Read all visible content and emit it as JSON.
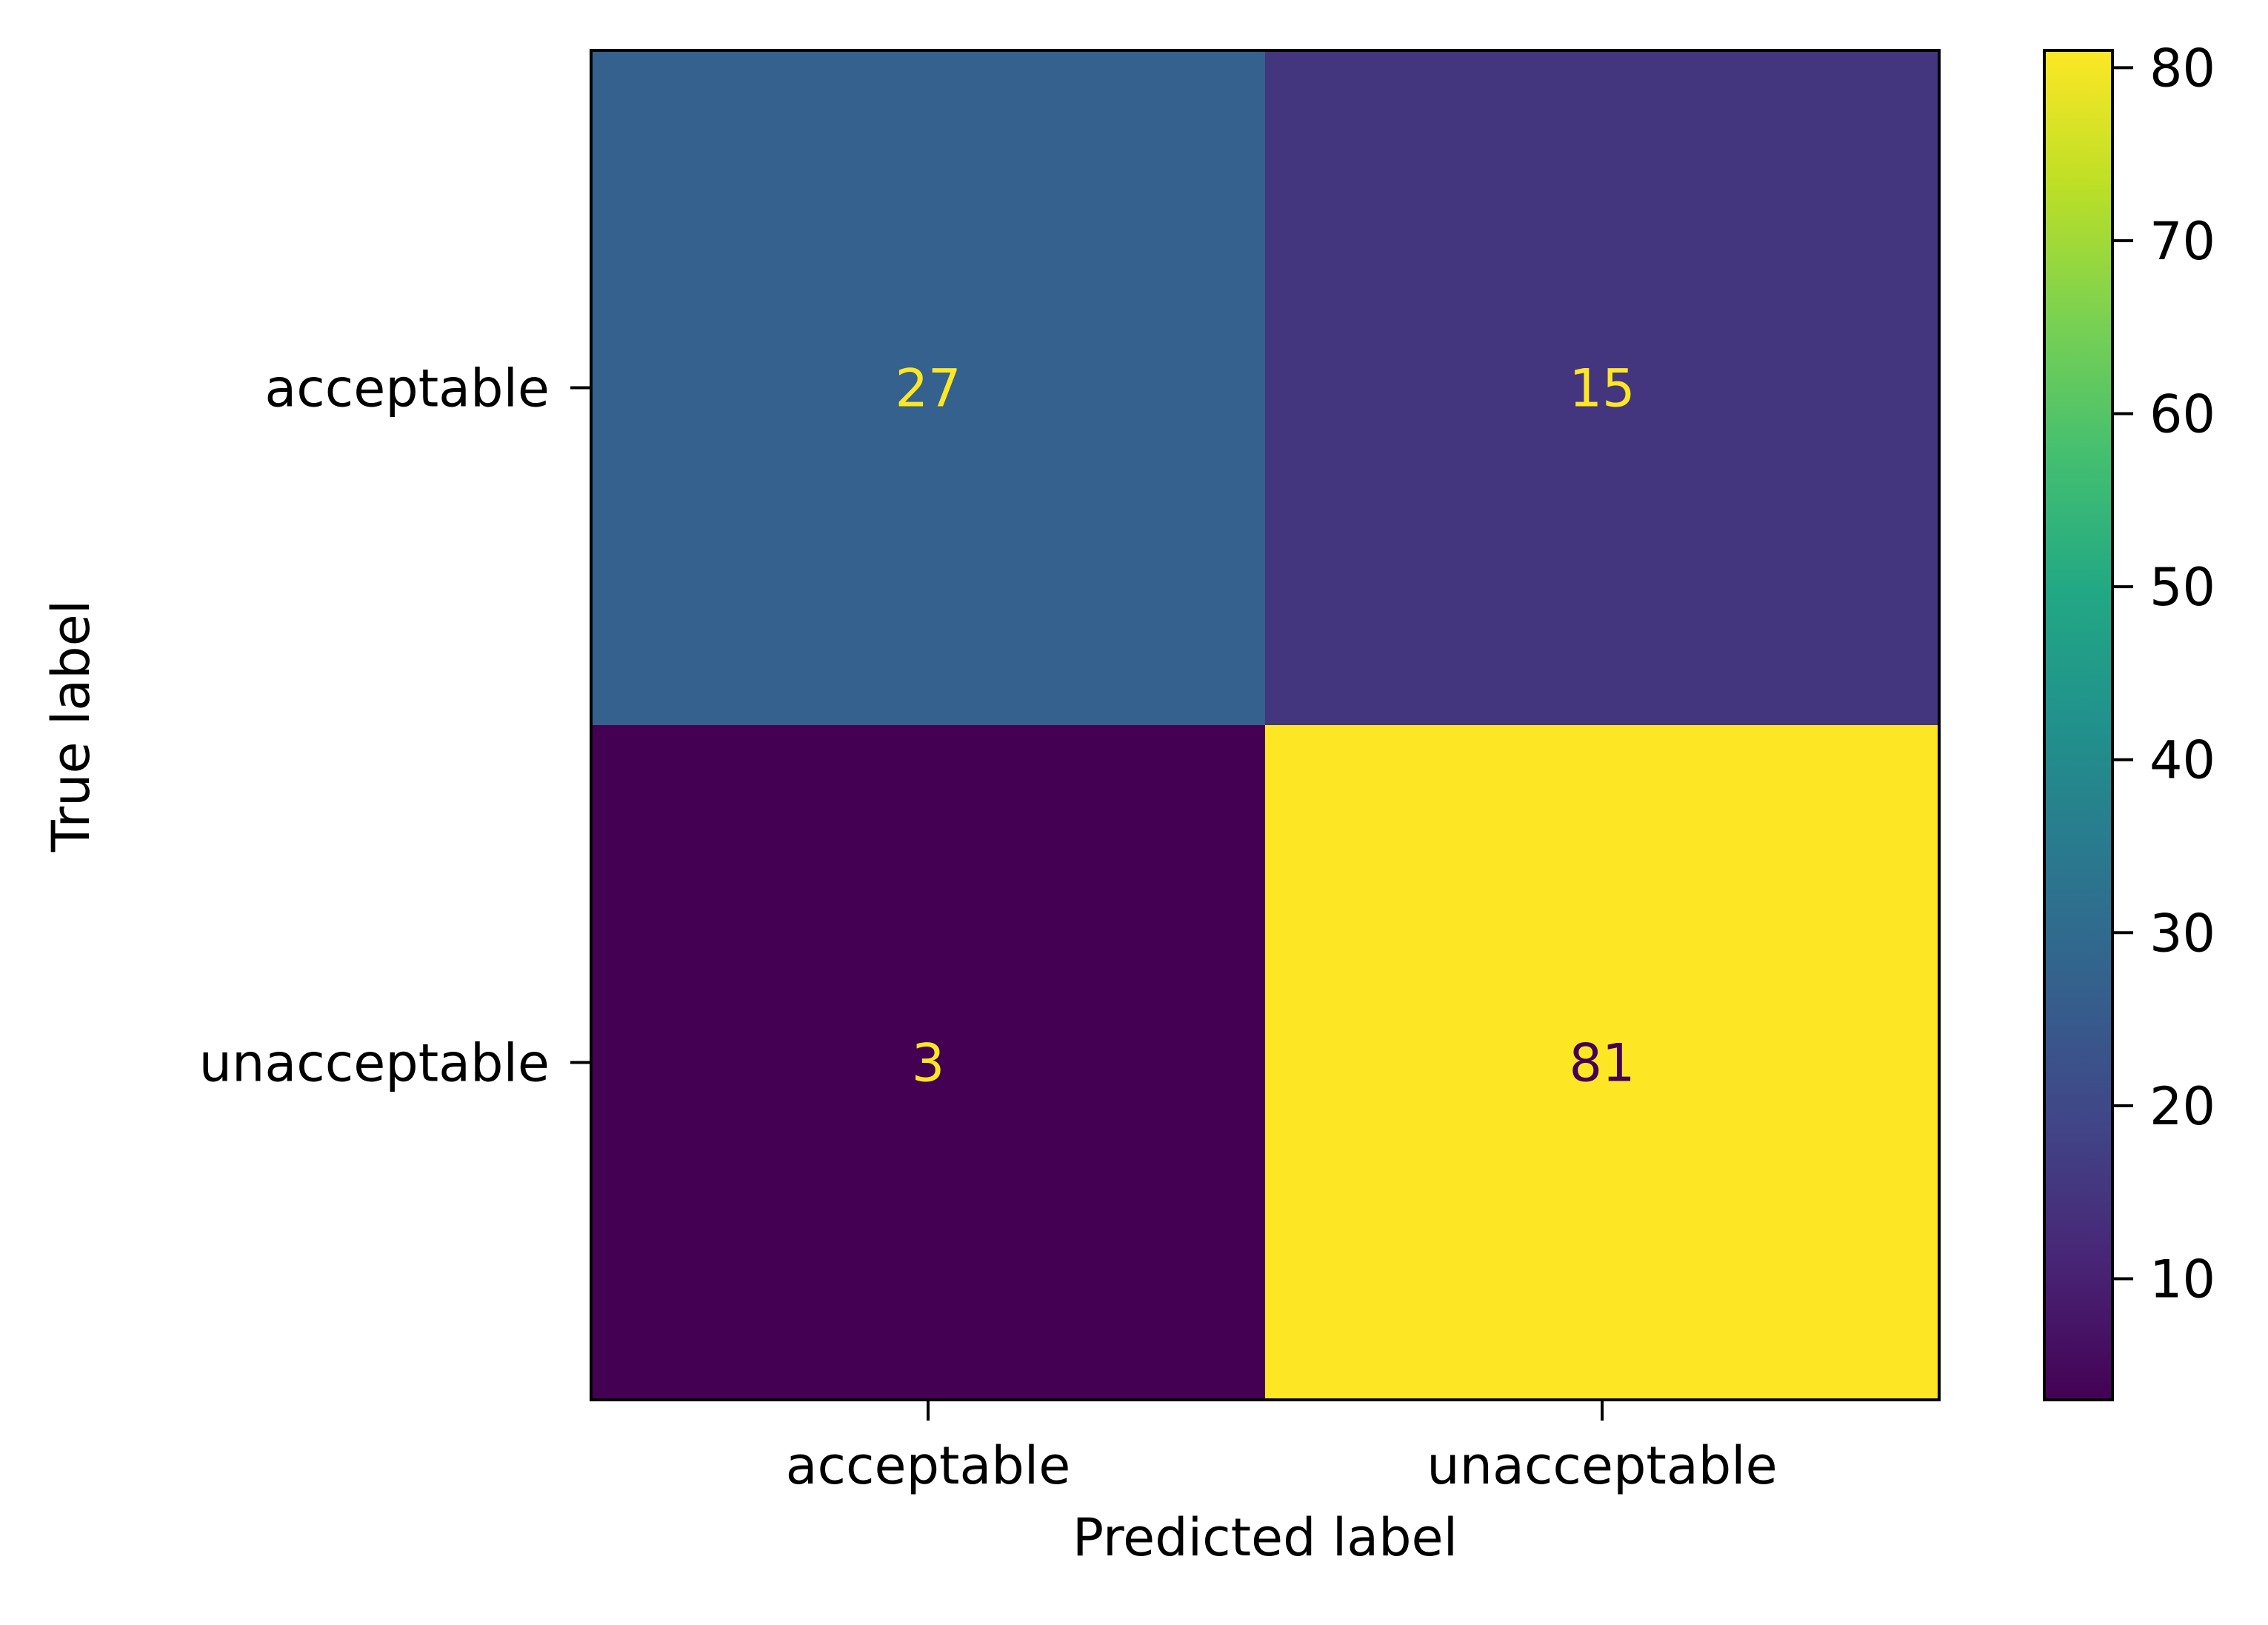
{
  "chart_data": {
    "type": "heatmap",
    "title": "",
    "xlabel": "Predicted label",
    "ylabel": "True label",
    "x_categories": [
      "acceptable",
      "unacceptable"
    ],
    "y_categories": [
      "acceptable",
      "unacceptable"
    ],
    "values": [
      [
        27,
        15
      ],
      [
        3,
        81
      ]
    ],
    "colormap": "viridis",
    "color_range": [
      3,
      81
    ],
    "colorbar_ticks": [
      10,
      20,
      30,
      40,
      50,
      60,
      70,
      80
    ],
    "annotation_colors": {
      "light": "#fde725",
      "dark": "#440154"
    }
  }
}
